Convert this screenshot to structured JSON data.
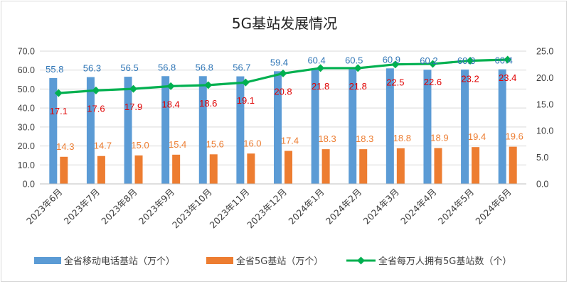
{
  "chart_data": {
    "type": "bar",
    "title": "5G基站发展情况",
    "categories": [
      "2023年6月",
      "2023年7月",
      "2023年8月",
      "2023年9月",
      "2023年10月",
      "2023年11月",
      "2023年12月",
      "2024年1月",
      "2024年2月",
      "2024年3月",
      "2024年4月",
      "2024年5月",
      "2024年6月"
    ],
    "series": [
      {
        "name": "全省移动电话基站（万个）",
        "type": "bar",
        "axis": "left",
        "color": "#5b9bd5",
        "values": [
          55.8,
          56.3,
          56.5,
          56.8,
          56.8,
          56.7,
          59.4,
          60.4,
          60.5,
          60.9,
          60.2,
          60.3,
          60.4
        ],
        "labels": [
          "55.8",
          "56.3",
          "56.5",
          "56.8",
          "56.8",
          "56.7",
          "59.4",
          "60.4",
          "60.5",
          "60.9",
          "60.2",
          "60.3",
          "60.4"
        ]
      },
      {
        "name": "全省5G基站（万个）",
        "type": "bar",
        "axis": "left",
        "color": "#ed7d31",
        "values": [
          14.3,
          14.7,
          15.0,
          15.4,
          15.6,
          16.0,
          17.4,
          18.3,
          18.3,
          18.8,
          18.9,
          19.4,
          19.6
        ],
        "labels": [
          "14.3",
          "14.7",
          "15.0",
          "15.4",
          "15.6",
          "16.0",
          "17.4",
          "18.3",
          "18.3",
          "18.8",
          "18.9",
          "19.4",
          "19.6"
        ]
      },
      {
        "name": "全省每万人拥有5G基站数（个）",
        "type": "line",
        "axis": "right",
        "color": "#00b050",
        "values": [
          17.1,
          17.6,
          17.9,
          18.4,
          18.6,
          19.1,
          20.8,
          21.8,
          21.8,
          22.5,
          22.6,
          23.2,
          23.4
        ],
        "labels": [
          "17.1",
          "17.6",
          "17.9",
          "18.4",
          "18.6",
          "19.1",
          "20.8",
          "21.8",
          "21.8",
          "22.5",
          "22.6",
          "23.2",
          "23.4"
        ]
      }
    ],
    "y_left": {
      "min": 0,
      "max": 70,
      "step": 10,
      "ticks": [
        "0.0",
        "10.0",
        "20.0",
        "30.0",
        "40.0",
        "50.0",
        "60.0",
        "70.0"
      ]
    },
    "y_right": {
      "min": 0,
      "max": 25,
      "step": 5,
      "ticks": [
        "0.0",
        "5.0",
        "10.0",
        "15.0",
        "20.0",
        "25.0"
      ]
    },
    "grid": true,
    "legend": "bottom"
  }
}
